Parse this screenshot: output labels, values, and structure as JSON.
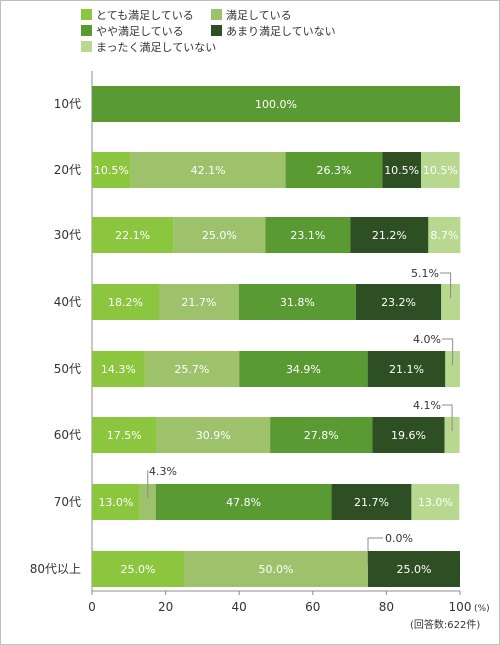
{
  "chart_data": {
    "type": "bar",
    "orientation": "horizontal",
    "stacked": true,
    "categories": [
      "10代",
      "20代",
      "30代",
      "40代",
      "50代",
      "60代",
      "70代",
      "80代以上"
    ],
    "series": [
      {
        "name": "とても満足している",
        "color": "#8cc63f",
        "values": [
          0,
          10.5,
          22.1,
          18.2,
          14.3,
          17.5,
          13.0,
          25.0
        ],
        "labels": [
          "",
          "10.5%",
          "22.1%",
          "18.2%",
          "14.3%",
          "17.5%",
          "13.0%",
          "25.0%"
        ]
      },
      {
        "name": "満足している",
        "color": "#9dc26b",
        "values": [
          0,
          42.1,
          25.0,
          21.7,
          25.7,
          30.9,
          4.3,
          50.0
        ],
        "labels": [
          "",
          "42.1%",
          "25.0%",
          "21.7%",
          "25.7%",
          "30.9%",
          "4.3%",
          "50.0%"
        ]
      },
      {
        "name": "やや満足している",
        "color": "#5a9a32",
        "values": [
          100.0,
          26.3,
          23.1,
          31.8,
          34.9,
          27.8,
          47.8,
          0
        ],
        "labels": [
          "100.0%",
          "26.3%",
          "23.1%",
          "31.8%",
          "34.9%",
          "27.8%",
          "47.8%",
          "0.0%"
        ]
      },
      {
        "name": "あまり満足していない",
        "color": "#2e4e24",
        "values": [
          0,
          10.5,
          21.2,
          23.2,
          21.1,
          19.6,
          21.7,
          25.0
        ],
        "labels": [
          "",
          "10.5%",
          "21.2%",
          "23.2%",
          "21.1%",
          "19.6%",
          "21.7%",
          "25.0%"
        ]
      },
      {
        "name": "まったく満足していない",
        "color": "#b9d88f",
        "values": [
          0,
          10.5,
          8.7,
          5.1,
          4.0,
          4.1,
          13.0,
          0
        ],
        "labels": [
          "",
          "10.5%",
          "8.7%",
          "5.1%",
          "4.0%",
          "4.1%",
          "13.0%",
          ""
        ]
      }
    ],
    "xlim": [
      0,
      100
    ],
    "xticks": [
      "0",
      "20",
      "40",
      "60",
      "80",
      "100"
    ],
    "unit_label": "(%)",
    "note": "(回答数:622件)",
    "legend_position": "top"
  }
}
